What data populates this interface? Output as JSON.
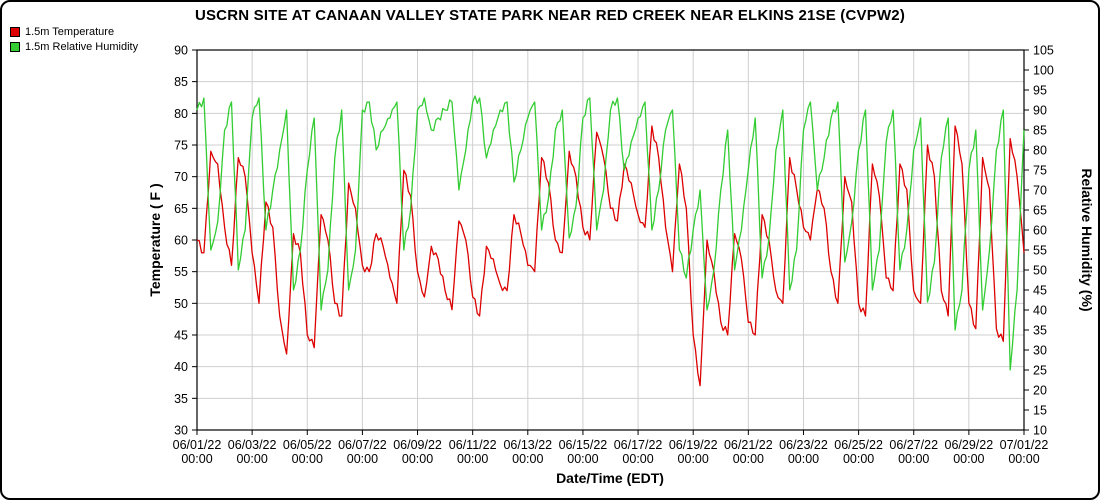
{
  "title": "USCRN SITE AT CANAAN VALLEY STATE PARK NEAR RED CREEK NEAR ELKINS 21SE (CVPW2)",
  "legend": [
    {
      "label": "1.5m Temperature",
      "color": "#dd0000"
    },
    {
      "label": "1.5m Relative Humidity",
      "color": "#33cc33"
    }
  ],
  "colors": {
    "temperature": "#dd0000",
    "humidity": "#33cc33",
    "grid": "#cfcfcf",
    "axis": "#000000"
  },
  "chart_data": {
    "type": "line",
    "title": "USCRN SITE AT CANAAN VALLEY STATE PARK NEAR RED CREEK NEAR ELKINS 21SE (CVPW2)",
    "xlabel": "Date/Time (EDT)",
    "ylabel_left": "Temperature ( F )",
    "ylabel_right": "Relative Humidity (%)",
    "y_left": {
      "min": 30,
      "max": 90,
      "step": 5
    },
    "y_right": {
      "min": 10,
      "max": 105,
      "step": 5
    },
    "grid": true,
    "legend_position": "top-left",
    "x_start": "06/01/22 00:00",
    "x_end": "07/01/22 00:00",
    "sample_interval_hours": 6,
    "x_ticks": [
      "06/01/22",
      "06/03/22",
      "06/05/22",
      "06/07/22",
      "06/09/22",
      "06/11/22",
      "06/13/22",
      "06/15/22",
      "06/17/22",
      "06/19/22",
      "06/21/22",
      "06/23/22",
      "06/25/22",
      "06/27/22",
      "06/29/22",
      "07/01/22"
    ],
    "x_tick_time": "00:00",
    "series": [
      {
        "name": "1.5m Temperature",
        "axis": "left",
        "color": "#dd0000",
        "values": [
          60,
          58,
          74,
          72,
          62,
          56,
          73,
          70,
          58,
          50,
          66,
          62,
          48,
          42,
          61,
          58,
          45,
          43,
          64,
          60,
          50,
          48,
          69,
          65,
          56,
          55,
          61,
          59,
          54,
          50,
          71,
          67,
          55,
          51,
          59,
          57,
          52,
          49,
          63,
          60,
          51,
          48,
          59,
          57,
          53,
          52,
          64,
          61,
          56,
          55,
          73,
          69,
          60,
          58,
          74,
          70,
          62,
          60,
          77,
          73,
          65,
          63,
          72,
          69,
          64,
          62,
          78,
          73,
          62,
          55,
          72,
          65,
          45,
          37,
          60,
          55,
          47,
          45,
          61,
          57,
          47,
          45,
          64,
          60,
          52,
          50,
          73,
          68,
          62,
          60,
          68,
          65,
          55,
          50,
          70,
          66,
          50,
          48,
          72,
          67,
          54,
          52,
          72,
          68,
          52,
          50,
          75,
          70,
          52,
          48,
          78,
          72,
          50,
          46,
          73,
          68,
          46,
          44,
          76,
          70,
          58
        ]
      },
      {
        "name": "1.5m Relative Humidity",
        "axis": "right",
        "color": "#33cc33",
        "values": [
          90,
          93,
          55,
          62,
          85,
          92,
          50,
          60,
          88,
          93,
          60,
          70,
          80,
          90,
          45,
          55,
          75,
          88,
          40,
          50,
          78,
          90,
          45,
          55,
          90,
          92,
          80,
          85,
          88,
          92,
          55,
          65,
          90,
          93,
          85,
          88,
          90,
          92,
          70,
          80,
          92,
          93,
          78,
          85,
          90,
          92,
          72,
          80,
          88,
          92,
          60,
          68,
          85,
          90,
          58,
          66,
          88,
          93,
          60,
          70,
          90,
          93,
          75,
          82,
          88,
          92,
          60,
          70,
          85,
          90,
          55,
          48,
          60,
          70,
          40,
          50,
          70,
          85,
          50,
          60,
          75,
          88,
          48,
          58,
          80,
          90,
          45,
          55,
          85,
          92,
          70,
          78,
          88,
          92,
          52,
          62,
          80,
          90,
          45,
          55,
          82,
          90,
          50,
          60,
          80,
          88,
          42,
          52,
          78,
          88,
          35,
          45,
          75,
          85,
          40,
          55,
          80,
          90,
          25,
          45,
          85
        ]
      }
    ]
  }
}
